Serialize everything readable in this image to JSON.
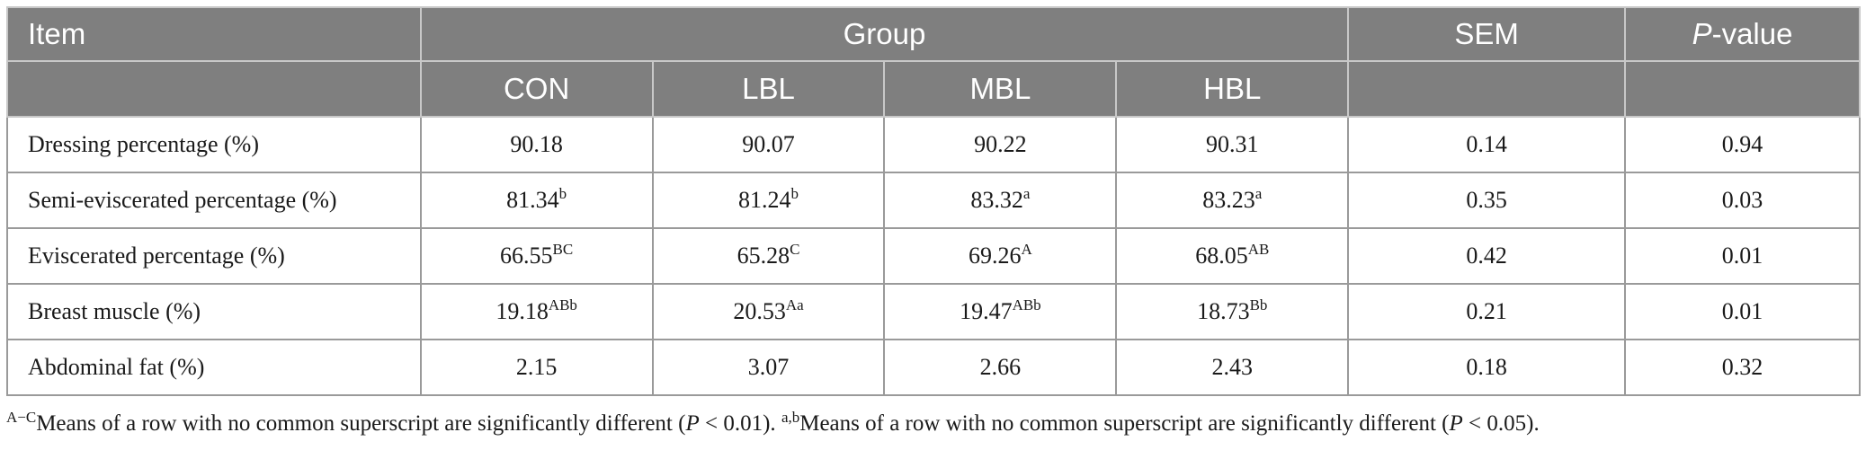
{
  "table": {
    "header": {
      "item": "Item",
      "group": "Group",
      "sem": "SEM",
      "p_value_italic": "P",
      "p_value_rest": "-value",
      "groups": [
        "CON",
        "LBL",
        "MBL",
        "HBL"
      ]
    },
    "rows": [
      {
        "label": "Dressing percentage (%)",
        "cells": [
          {
            "v": "90.18",
            "s": ""
          },
          {
            "v": "90.07",
            "s": ""
          },
          {
            "v": "90.22",
            "s": ""
          },
          {
            "v": "90.31",
            "s": ""
          }
        ],
        "sem": "0.14",
        "p": "0.94"
      },
      {
        "label": "Semi-eviscerated percentage (%)",
        "cells": [
          {
            "v": "81.34",
            "s": "b"
          },
          {
            "v": "81.24",
            "s": "b"
          },
          {
            "v": "83.32",
            "s": "a"
          },
          {
            "v": "83.23",
            "s": "a"
          }
        ],
        "sem": "0.35",
        "p": "0.03"
      },
      {
        "label": "Eviscerated percentage (%)",
        "cells": [
          {
            "v": "66.55",
            "s": "BC"
          },
          {
            "v": "65.28",
            "s": "C"
          },
          {
            "v": "69.26",
            "s": "A"
          },
          {
            "v": "68.05",
            "s": "AB"
          }
        ],
        "sem": "0.42",
        "p": "0.01"
      },
      {
        "label": "Breast muscle (%)",
        "cells": [
          {
            "v": "19.18",
            "s": "ABb"
          },
          {
            "v": "20.53",
            "s": "Aa"
          },
          {
            "v": "19.47",
            "s": "ABb"
          },
          {
            "v": "18.73",
            "s": "Bb"
          }
        ],
        "sem": "0.21",
        "p": "0.01"
      },
      {
        "label": "Abdominal fat (%)",
        "cells": [
          {
            "v": "2.15",
            "s": ""
          },
          {
            "v": "3.07",
            "s": ""
          },
          {
            "v": "2.66",
            "s": ""
          },
          {
            "v": "2.43",
            "s": ""
          }
        ],
        "sem": "0.18",
        "p": "0.32"
      }
    ]
  },
  "footnote": {
    "sup1": "A−C",
    "text1": "Means of a row with no common superscript are significantly different (",
    "p1": "P",
    "text1b": " < 0.01). ",
    "sup2": "a,b",
    "text2": "Means of a row with no common superscript are significantly different (",
    "p2": "P",
    "text2b": " < 0.05)."
  }
}
